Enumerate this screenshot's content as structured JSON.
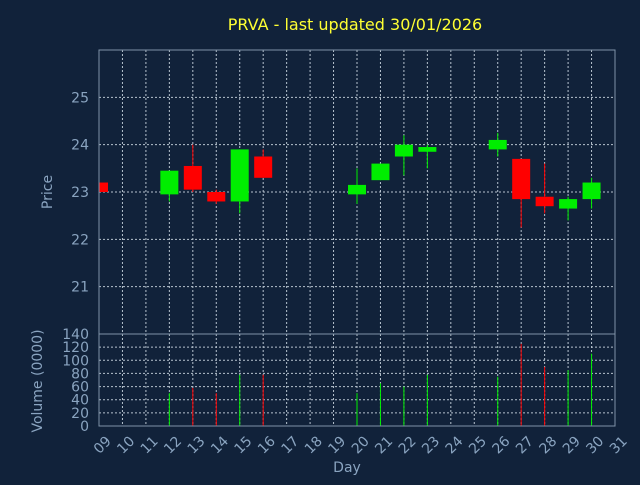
{
  "chart_data": {
    "type": "candlestick",
    "title": "PRVA - last updated 30/01/2026",
    "xlabel": "Day",
    "x_ticks": [
      "09",
      "10",
      "11",
      "12",
      "13",
      "14",
      "15",
      "16",
      "17",
      "18",
      "19",
      "20",
      "21",
      "22",
      "23",
      "24",
      "25",
      "26",
      "27",
      "28",
      "29",
      "30",
      "31"
    ],
    "price_panel": {
      "ylabel": "Price",
      "ylim": [
        20.0,
        26.0
      ],
      "y_ticks": [
        21,
        22,
        23,
        24,
        25
      ],
      "grid": true,
      "up_color": "#00ee00",
      "down_color": "#ff0000",
      "candles": [
        {
          "day": 9,
          "open": 23.2,
          "high": 23.2,
          "low": 23.0,
          "close": 23.0
        },
        {
          "day": 12,
          "open": 22.95,
          "high": 23.45,
          "low": 22.8,
          "close": 23.45
        },
        {
          "day": 13,
          "open": 23.55,
          "high": 24.0,
          "low": 23.0,
          "close": 23.05
        },
        {
          "day": 14,
          "open": 23.0,
          "high": 23.05,
          "low": 22.75,
          "close": 22.8
        },
        {
          "day": 15,
          "open": 22.8,
          "high": 23.9,
          "low": 22.55,
          "close": 23.9
        },
        {
          "day": 16,
          "open": 23.75,
          "high": 23.9,
          "low": 23.3,
          "close": 23.3
        },
        {
          "day": 20,
          "open": 22.95,
          "high": 23.5,
          "low": 22.75,
          "close": 23.15
        },
        {
          "day": 21,
          "open": 23.25,
          "high": 23.6,
          "low": 23.25,
          "close": 23.6
        },
        {
          "day": 22,
          "open": 23.75,
          "high": 24.2,
          "low": 23.35,
          "close": 24.0
        },
        {
          "day": 23,
          "open": 23.85,
          "high": 24.0,
          "low": 23.5,
          "close": 23.95
        },
        {
          "day": 26,
          "open": 23.9,
          "high": 24.25,
          "low": 23.75,
          "close": 24.1
        },
        {
          "day": 27,
          "open": 23.7,
          "high": 23.7,
          "low": 22.25,
          "close": 22.85
        },
        {
          "day": 28,
          "open": 22.9,
          "high": 23.6,
          "low": 22.55,
          "close": 22.7
        },
        {
          "day": 29,
          "open": 22.65,
          "high": 22.9,
          "low": 22.4,
          "close": 22.85
        },
        {
          "day": 30,
          "open": 22.85,
          "high": 23.3,
          "low": 22.65,
          "close": 23.2
        }
      ]
    },
    "volume_panel": {
      "ylabel": "Volume (0000)",
      "ylim": [
        0,
        140
      ],
      "y_ticks": [
        0,
        20,
        40,
        60,
        80,
        100,
        120,
        140
      ],
      "grid": true,
      "bars": [
        {
          "day": 12,
          "value": 50,
          "direction": "up"
        },
        {
          "day": 13,
          "value": 58,
          "direction": "down"
        },
        {
          "day": 14,
          "value": 50,
          "direction": "down"
        },
        {
          "day": 15,
          "value": 78,
          "direction": "up"
        },
        {
          "day": 16,
          "value": 78,
          "direction": "down"
        },
        {
          "day": 20,
          "value": 50,
          "direction": "up"
        },
        {
          "day": 21,
          "value": 65,
          "direction": "up"
        },
        {
          "day": 22,
          "value": 60,
          "direction": "up"
        },
        {
          "day": 23,
          "value": 78,
          "direction": "up"
        },
        {
          "day": 26,
          "value": 75,
          "direction": "up"
        },
        {
          "day": 27,
          "value": 125,
          "direction": "down"
        },
        {
          "day": 28,
          "value": 90,
          "direction": "down"
        },
        {
          "day": 29,
          "value": 85,
          "direction": "up"
        },
        {
          "day": 30,
          "value": 110,
          "direction": "up"
        }
      ]
    }
  }
}
